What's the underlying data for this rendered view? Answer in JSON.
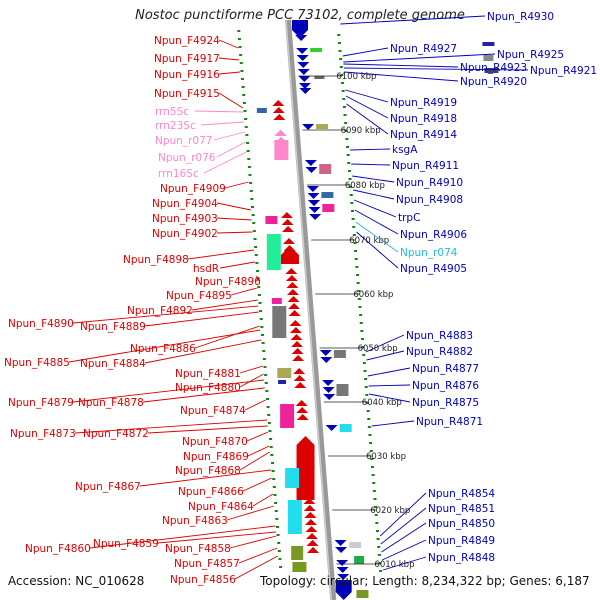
{
  "title": "Nostoc punctiforme PCC 73102, complete genome",
  "footer": {
    "accession": "Accession: NC_010628",
    "topology": "Topology: circular; Length: 8,234,322 bp; Genes: 6,187"
  },
  "colors": {
    "forward": "#dd0000",
    "reverse": "#0000bb",
    "rna": "#ff88cc",
    "rna_rev": "#22bbdd",
    "axis": "#999999",
    "tick": "#118811"
  },
  "kbp_labels": [
    "6100 kbp",
    "6090 kbp",
    "6080 kbp",
    "6070 kbp",
    "6060 kbp",
    "6050 kbp",
    "6040 kbp",
    "6030 kbp",
    "6020 kbp",
    "6010 kbp"
  ],
  "left_labels": [
    {
      "text": "Npun_F4924",
      "type": "forward"
    },
    {
      "text": "Npun_F4917",
      "type": "forward"
    },
    {
      "text": "Npun_F4916",
      "type": "forward"
    },
    {
      "text": "Npun_F4915",
      "type": "forward"
    },
    {
      "text": "rrn5Sc",
      "type": "rna"
    },
    {
      "text": "rrn23Sc",
      "type": "rna"
    },
    {
      "text": "Npun_r077",
      "type": "rna"
    },
    {
      "text": "Npun_r076",
      "type": "rna"
    },
    {
      "text": "rrn16Sc",
      "type": "rna"
    },
    {
      "text": "Npun_F4909",
      "type": "forward"
    },
    {
      "text": "Npun_F4904",
      "type": "forward"
    },
    {
      "text": "Npun_F4903",
      "type": "forward"
    },
    {
      "text": "Npun_F4902",
      "type": "forward"
    },
    {
      "text": "Npun_F4898",
      "type": "forward"
    },
    {
      "text": "hsdR",
      "type": "forward"
    },
    {
      "text": "Npun_F4896",
      "type": "forward"
    },
    {
      "text": "Npun_F4895",
      "type": "forward"
    },
    {
      "text": "Npun_F4892",
      "type": "forward"
    },
    {
      "text": "Npun_F4890",
      "type": "forward"
    },
    {
      "text": "Npun_F4889",
      "type": "forward"
    },
    {
      "text": "Npun_F4886",
      "type": "forward"
    },
    {
      "text": "Npun_F4885",
      "type": "forward"
    },
    {
      "text": "Npun_F4884",
      "type": "forward"
    },
    {
      "text": "Npun_F4881",
      "type": "forward"
    },
    {
      "text": "Npun_F4880",
      "type": "forward"
    },
    {
      "text": "Npun_F4879",
      "type": "forward"
    },
    {
      "text": "Npun_F4878",
      "type": "forward"
    },
    {
      "text": "Npun_F4874",
      "type": "forward"
    },
    {
      "text": "Npun_F4873",
      "type": "forward"
    },
    {
      "text": "Npun_F4872",
      "type": "forward"
    },
    {
      "text": "Npun_F4870",
      "type": "forward"
    },
    {
      "text": "Npun_F4869",
      "type": "forward"
    },
    {
      "text": "Npun_F4868",
      "type": "forward"
    },
    {
      "text": "Npun_F4867",
      "type": "forward"
    },
    {
      "text": "Npun_F4866",
      "type": "forward"
    },
    {
      "text": "Npun_F4864",
      "type": "forward"
    },
    {
      "text": "Npun_F4863",
      "type": "forward"
    },
    {
      "text": "Npun_F4860",
      "type": "forward"
    },
    {
      "text": "Npun_F4859",
      "type": "forward"
    },
    {
      "text": "Npun_F4858",
      "type": "forward"
    },
    {
      "text": "Npun_F4857",
      "type": "forward"
    },
    {
      "text": "Npun_F4856",
      "type": "forward"
    }
  ],
  "right_labels": [
    {
      "text": "Npun_R4930",
      "type": "reverse"
    },
    {
      "text": "Npun_R4927",
      "type": "reverse"
    },
    {
      "text": "Npun_R4925",
      "type": "reverse"
    },
    {
      "text": "Npun_R4923",
      "type": "reverse"
    },
    {
      "text": "Npun_R4921",
      "type": "reverse"
    },
    {
      "text": "Npun_R4920",
      "type": "reverse"
    },
    {
      "text": "Npun_R4919",
      "type": "reverse"
    },
    {
      "text": "Npun_R4918",
      "type": "reverse"
    },
    {
      "text": "Npun_R4914",
      "type": "reverse"
    },
    {
      "text": "ksgA",
      "type": "reverse"
    },
    {
      "text": "Npun_R4911",
      "type": "reverse"
    },
    {
      "text": "Npun_R4910",
      "type": "reverse"
    },
    {
      "text": "Npun_R4908",
      "type": "reverse"
    },
    {
      "text": "trpC",
      "type": "reverse"
    },
    {
      "text": "Npun_R4906",
      "type": "reverse"
    },
    {
      "text": "Npun_r074",
      "type": "rna_rev"
    },
    {
      "text": "Npun_R4905",
      "type": "reverse"
    },
    {
      "text": "Npun_R4883",
      "type": "reverse"
    },
    {
      "text": "Npun_R4882",
      "type": "reverse"
    },
    {
      "text": "Npun_R4877",
      "type": "reverse"
    },
    {
      "text": "Npun_R4876",
      "type": "reverse"
    },
    {
      "text": "Npun_R4875",
      "type": "reverse"
    },
    {
      "text": "Npun_R4871",
      "type": "reverse"
    },
    {
      "text": "Npun_R4854",
      "type": "reverse"
    },
    {
      "text": "Npun_R4851",
      "type": "reverse"
    },
    {
      "text": "Npun_R4850",
      "type": "reverse"
    },
    {
      "text": "Npun_R4849",
      "type": "reverse"
    },
    {
      "text": "Npun_R4848",
      "type": "reverse"
    }
  ]
}
